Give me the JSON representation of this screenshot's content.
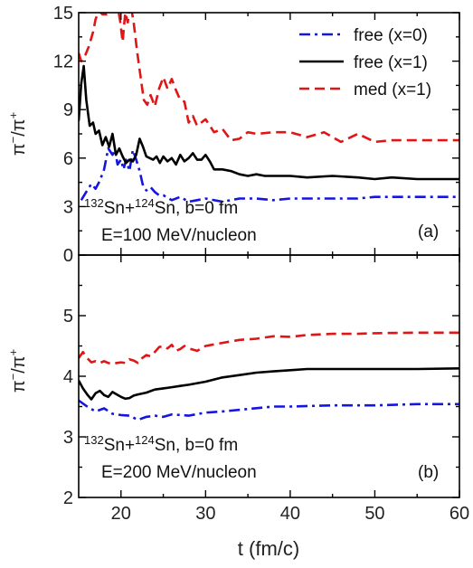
{
  "chart_data": [
    {
      "type": "line",
      "panel_label": "(a)",
      "ylabel_main": "π",
      "ylabel_sup1": "−",
      "ylabel_sep": "/π",
      "ylabel_sup2": "+",
      "xlim": [
        15,
        60
      ],
      "ylim": [
        0,
        15
      ],
      "y_ticks": [
        "0",
        "3",
        "6",
        "9",
        "12",
        "15"
      ],
      "annotation_reaction": {
        "pre1": "132",
        "t1": "Sn+",
        "pre2": "124",
        "t2": "Sn, b=0 fm"
      },
      "annotation_energy": "E=100 MeV/nucleon",
      "legend": {
        "position": "top-right",
        "entries": [
          "free (x=0)",
          "free (x=1)",
          "med (x=1)"
        ]
      },
      "series": [
        {
          "name": "free (x=0)",
          "color": "#1515e0",
          "style": "dashdot",
          "x": [
            15.3,
            16,
            16.5,
            17,
            17.5,
            18,
            18.5,
            19,
            19.3,
            19.6,
            20,
            20.3,
            20.6,
            21,
            21.4,
            21.8,
            22.2,
            22.6,
            23,
            23.5,
            24,
            24.5,
            25,
            26,
            27,
            28,
            29,
            30,
            32,
            34,
            36,
            38,
            40,
            42,
            45,
            48,
            50,
            52,
            55,
            58,
            60
          ],
          "y": [
            3.4,
            4.0,
            4.4,
            4.1,
            4.6,
            5.3,
            6.6,
            6.2,
            6.5,
            5.6,
            5.9,
            5.3,
            5.9,
            5.2,
            6.5,
            5.9,
            5.2,
            4.3,
            4.0,
            4.2,
            3.9,
            3.7,
            3.7,
            3.4,
            3.6,
            3.3,
            3.4,
            3.5,
            3.3,
            3.5,
            3.5,
            3.4,
            3.5,
            3.5,
            3.5,
            3.5,
            3.6,
            3.6,
            3.6,
            3.6,
            3.6
          ]
        },
        {
          "name": "free (x=1)",
          "color": "#000000",
          "style": "solid",
          "x": [
            15,
            15.3,
            15.6,
            15.9,
            16.3,
            16.7,
            17,
            17.4,
            17.8,
            18.2,
            18.6,
            19,
            19.4,
            19.8,
            20.2,
            20.6,
            21,
            21.4,
            21.8,
            22.2,
            22.6,
            23,
            23.4,
            23.8,
            24.2,
            24.6,
            25,
            25.5,
            26,
            26.5,
            27,
            27.5,
            28,
            28.5,
            29,
            29.5,
            30,
            30.5,
            31,
            32,
            33,
            34,
            35,
            36,
            37,
            38,
            40,
            42,
            45,
            48,
            50,
            52,
            55,
            58,
            60
          ],
          "y": [
            8.3,
            10.6,
            11.7,
            9.6,
            8.0,
            8.2,
            7.5,
            7.7,
            6.8,
            7.3,
            6.7,
            7.5,
            6.2,
            6.6,
            6.1,
            5.7,
            5.9,
            5.8,
            6.2,
            7.2,
            6.7,
            6.1,
            6.0,
            5.9,
            6.1,
            5.7,
            6.1,
            5.8,
            6.0,
            5.6,
            6.2,
            5.8,
            6.0,
            6.3,
            5.9,
            5.9,
            6.2,
            5.8,
            5.3,
            5.3,
            5.2,
            5.0,
            4.9,
            5.0,
            4.9,
            4.9,
            4.9,
            4.8,
            4.9,
            4.8,
            4.7,
            4.8,
            4.7,
            4.7,
            4.7
          ]
        },
        {
          "name": "med (x=1)",
          "color": "#e01515",
          "style": "dashed",
          "x": [
            15,
            15.3,
            15.8,
            16.2,
            16.7,
            17,
            17.4,
            17.8,
            18.3,
            18.8,
            19.2,
            19.6,
            19.9,
            20.2,
            20.5,
            20.8,
            21.1,
            21.5,
            21.9,
            22.3,
            22.7,
            23.1,
            23.5,
            24,
            24.5,
            25,
            25.5,
            26,
            26.5,
            27,
            27.5,
            28,
            28.5,
            29,
            30,
            31,
            32,
            33,
            34,
            35,
            36,
            38,
            40,
            42,
            44,
            46,
            48,
            50,
            52,
            55,
            58,
            60
          ],
          "y": [
            12.5,
            12.0,
            12.4,
            12.9,
            13.8,
            14.6,
            15.1,
            14.9,
            14.9,
            15.0,
            15.3,
            15.4,
            14.5,
            13.2,
            15.0,
            14.4,
            15.6,
            14.4,
            12.6,
            11.1,
            9.6,
            9.3,
            9.9,
            9.2,
            10.3,
            11.0,
            10.3,
            10.9,
            10.2,
            9.6,
            9.5,
            8.2,
            8.6,
            8.0,
            8.4,
            7.6,
            7.8,
            7.1,
            7.2,
            7.6,
            7.5,
            7.6,
            7.6,
            7.3,
            7.6,
            7.0,
            7.5,
            7.0,
            7.1,
            7.1,
            7.1,
            7.1
          ]
        }
      ]
    },
    {
      "type": "line",
      "panel_label": "(b)",
      "ylabel_main": "π",
      "ylabel_sup1": "−",
      "ylabel_sep": "/π",
      "ylabel_sup2": "+",
      "xlabel": "t (fm/c)",
      "xlim": [
        15,
        60
      ],
      "ylim": [
        2,
        6
      ],
      "x_ticks": [
        "20",
        "30",
        "40",
        "50",
        "60"
      ],
      "y_ticks": [
        "2",
        "3",
        "4",
        "5"
      ],
      "annotation_reaction": {
        "pre1": "132",
        "t1": "Sn+",
        "pre2": "124",
        "t2": "Sn, b=0 fm"
      },
      "annotation_energy": "E=200 MeV/nucleon",
      "series": [
        {
          "name": "free (x=0)",
          "color": "#1515e0",
          "style": "dashdot",
          "x": [
            15,
            16,
            17,
            18,
            19,
            20,
            21,
            22,
            23,
            24,
            25,
            26,
            27,
            28,
            30,
            32,
            35,
            38,
            40,
            45,
            50,
            55,
            60
          ],
          "y": [
            3.6,
            3.5,
            3.42,
            3.47,
            3.38,
            3.36,
            3.35,
            3.28,
            3.33,
            3.35,
            3.33,
            3.37,
            3.36,
            3.35,
            3.4,
            3.42,
            3.46,
            3.5,
            3.5,
            3.52,
            3.52,
            3.54,
            3.54
          ]
        },
        {
          "name": "free (x=1)",
          "color": "#000000",
          "style": "solid",
          "x": [
            15,
            15.5,
            16,
            16.5,
            17,
            17.5,
            18,
            18.5,
            19,
            19.5,
            20,
            20.5,
            21,
            21.5,
            22,
            23,
            24,
            25,
            26,
            27,
            28,
            30,
            32,
            34,
            36,
            38,
            40,
            42,
            45,
            48,
            50,
            55,
            60
          ],
          "y": [
            3.93,
            3.8,
            3.7,
            3.62,
            3.72,
            3.76,
            3.69,
            3.66,
            3.74,
            3.7,
            3.66,
            3.63,
            3.64,
            3.68,
            3.7,
            3.73,
            3.78,
            3.8,
            3.82,
            3.84,
            3.86,
            3.91,
            3.98,
            4.02,
            4.06,
            4.08,
            4.1,
            4.12,
            4.12,
            4.12,
            4.12,
            4.12,
            4.13
          ]
        },
        {
          "name": "med (x=1)",
          "color": "#e01515",
          "style": "dashed",
          "x": [
            15,
            15.5,
            16,
            16.5,
            17,
            17.5,
            18,
            18.5,
            19,
            19.5,
            20,
            20.5,
            21,
            21.5,
            22,
            22.5,
            23,
            23.5,
            24,
            24.5,
            25,
            25.5,
            26,
            26.5,
            27,
            27.5,
            28,
            29,
            30,
            32,
            34,
            36,
            38,
            40,
            42,
            45,
            48,
            50,
            55,
            60
          ],
          "y": [
            4.3,
            4.4,
            4.3,
            4.23,
            4.25,
            4.22,
            4.25,
            4.22,
            4.2,
            4.22,
            4.23,
            4.22,
            4.28,
            4.26,
            4.22,
            4.3,
            4.35,
            4.33,
            4.4,
            4.48,
            4.5,
            4.46,
            4.52,
            4.42,
            4.45,
            4.5,
            4.46,
            4.42,
            4.5,
            4.55,
            4.6,
            4.62,
            4.66,
            4.65,
            4.68,
            4.7,
            4.7,
            4.71,
            4.72,
            4.72
          ]
        }
      ]
    }
  ]
}
